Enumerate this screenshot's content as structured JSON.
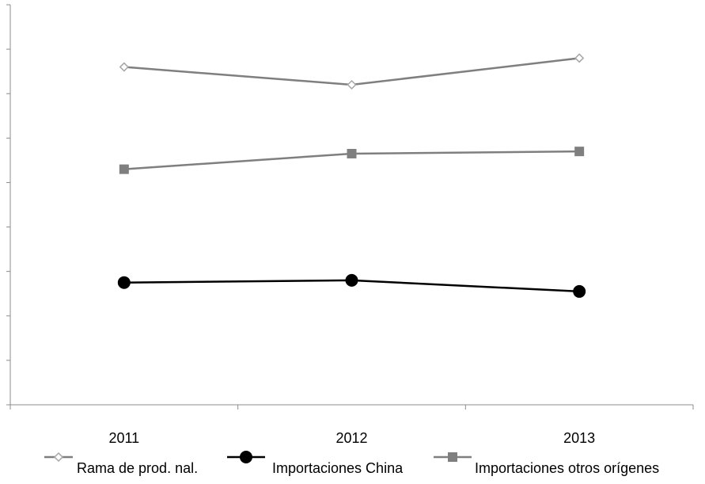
{
  "chart_data": {
    "type": "line",
    "categories": [
      "2011",
      "2012",
      "2013"
    ],
    "series": [
      {
        "name": "Rama de prod. nal.",
        "values": [
          7.6,
          7.2,
          7.8
        ],
        "color": "#7f7f7f",
        "marker": "diamond-open"
      },
      {
        "name": "Importaciones China",
        "values": [
          2.75,
          2.8,
          2.55
        ],
        "color": "#000000",
        "marker": "circle-filled"
      },
      {
        "name": "Importaciones otros orígenes",
        "values": [
          5.3,
          5.65,
          5.7
        ],
        "color": "#7f7f7f",
        "marker": "square-filled"
      }
    ],
    "ylim": [
      0,
      9
    ],
    "y_tick_labels_visible": false,
    "y_major_tick_count": 10,
    "grid": false,
    "legend_position": "bottom",
    "title": "",
    "xlabel": "",
    "ylabel": ""
  }
}
